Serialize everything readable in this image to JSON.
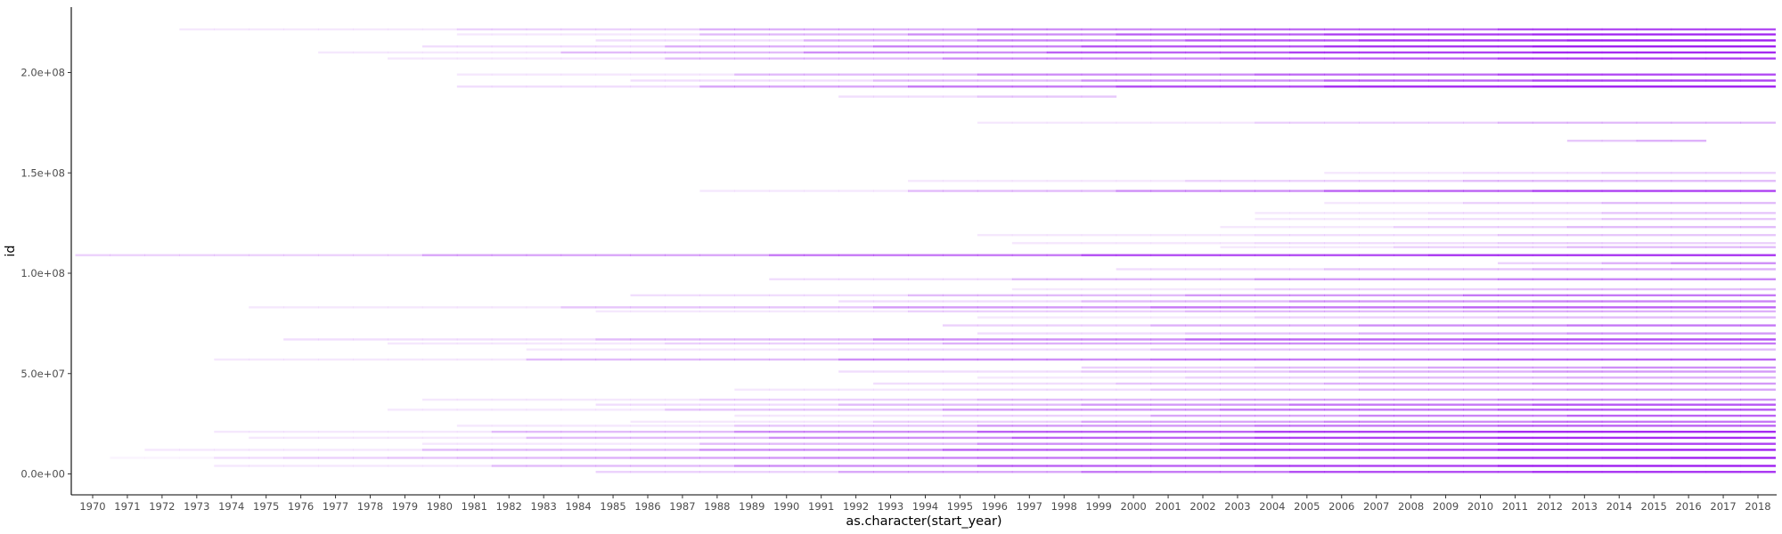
{
  "chart_data": {
    "type": "heatmap",
    "xlabel": "as.character(start_year)",
    "ylabel": "id",
    "categories": [
      "1970",
      "1971",
      "1972",
      "1973",
      "1974",
      "1975",
      "1976",
      "1977",
      "1978",
      "1979",
      "1980",
      "1981",
      "1982",
      "1983",
      "1984",
      "1985",
      "1986",
      "1987",
      "1988",
      "1989",
      "1990",
      "1991",
      "1992",
      "1993",
      "1994",
      "1995",
      "1996",
      "1997",
      "1998",
      "1999",
      "2000",
      "2001",
      "2002",
      "2003",
      "2004",
      "2005",
      "2006",
      "2007",
      "2008",
      "2009",
      "2010",
      "2011",
      "2012",
      "2013",
      "2014",
      "2015",
      "2016",
      "2017",
      "2018"
    ],
    "y_ticks": [
      {
        "value": 0,
        "label": "0.0e+00"
      },
      {
        "value": 50000000,
        "label": "5.0e+07"
      },
      {
        "value": 100000000,
        "label": "1.0e+08"
      },
      {
        "value": 150000000,
        "label": "1.5e+08"
      },
      {
        "value": 200000000,
        "label": "2.0e+08"
      }
    ],
    "ylim": [
      -11000000,
      228000000
    ],
    "fill_color": "#a020f0",
    "grid": false,
    "legend": "none",
    "bands": [
      {
        "id": 8000000,
        "start": "1971",
        "end": "2018",
        "dens": [
          0.05,
          0.15,
          0.2,
          0.25,
          0.3,
          0.35,
          0.4,
          0.45,
          0.5,
          0.55,
          0.6,
          0.65,
          0.7,
          0.75,
          0.8,
          0.85,
          0.9,
          0.95,
          1.0
        ]
      },
      {
        "id": 4000000,
        "start": "1974",
        "end": "2018",
        "dens": [
          0.1,
          0.3,
          0.5,
          0.7,
          0.85,
          1.0
        ]
      },
      {
        "id": 12000000,
        "start": "1972",
        "end": "2018",
        "dens": [
          0.1,
          0.3,
          0.5,
          0.7,
          0.85,
          1.0
        ]
      },
      {
        "id": 1000000,
        "start": "1985",
        "end": "2018",
        "dens": [
          0.2,
          0.4,
          0.6,
          0.8,
          0.9
        ]
      },
      {
        "id": 15000000,
        "start": "1980",
        "end": "2018",
        "dens": [
          0.1,
          0.3,
          0.5,
          0.7,
          0.85
        ]
      },
      {
        "id": 18000000,
        "start": "1975",
        "end": "2018",
        "dens": [
          0.1,
          0.3,
          0.5,
          0.7,
          0.85,
          0.95
        ]
      },
      {
        "id": 21000000,
        "start": "1974",
        "end": "2018",
        "dens": [
          0.1,
          0.3,
          0.5,
          0.7,
          0.85,
          0.95
        ]
      },
      {
        "id": 24000000,
        "start": "1981",
        "end": "2018",
        "dens": [
          0.1,
          0.25,
          0.45,
          0.6,
          0.7
        ]
      },
      {
        "id": 26000000,
        "start": "1986",
        "end": "2018",
        "dens": [
          0.1,
          0.2,
          0.4,
          0.5,
          0.6
        ]
      },
      {
        "id": 29000000,
        "start": "1989",
        "end": "2018",
        "dens": [
          0.1,
          0.2,
          0.4,
          0.55,
          0.7
        ]
      },
      {
        "id": 32000000,
        "start": "1979",
        "end": "2018",
        "dens": [
          0.1,
          0.25,
          0.45,
          0.6,
          0.75
        ]
      },
      {
        "id": 34500000,
        "start": "1985",
        "end": "2018",
        "dens": [
          0.15,
          0.3,
          0.45,
          0.6,
          0.75
        ]
      },
      {
        "id": 37000000,
        "start": "1980",
        "end": "2018",
        "dens": [
          0.1,
          0.2,
          0.3,
          0.4,
          0.5
        ]
      },
      {
        "id": 42000000,
        "start": "1989",
        "end": "2018",
        "dens": [
          0.1,
          0.15,
          0.25,
          0.35,
          0.4
        ]
      },
      {
        "id": 45000000,
        "start": "1993",
        "end": "2018",
        "dens": [
          0.15,
          0.25,
          0.35,
          0.45
        ]
      },
      {
        "id": 48000000,
        "start": "1996",
        "end": "2018",
        "dens": [
          0.1,
          0.2,
          0.3,
          0.35
        ]
      },
      {
        "id": 51000000,
        "start": "1992",
        "end": "2018",
        "dens": [
          0.15,
          0.25,
          0.35,
          0.45
        ]
      },
      {
        "id": 53000000,
        "start": "1999",
        "end": "2018",
        "dens": [
          0.2,
          0.3,
          0.4,
          0.5
        ]
      },
      {
        "id": 57000000,
        "start": "1974",
        "end": "2018",
        "dens": [
          0.1,
          0.3,
          0.5,
          0.6,
          0.7
        ]
      },
      {
        "id": 62000000,
        "start": "1983",
        "end": "2018",
        "dens": [
          0.1,
          0.15,
          0.25,
          0.3
        ]
      },
      {
        "id": 65000000,
        "start": "1979",
        "end": "2018",
        "dens": [
          0.1,
          0.2,
          0.35,
          0.5,
          0.6
        ]
      },
      {
        "id": 67000000,
        "start": "1976",
        "end": "2018",
        "dens": [
          0.15,
          0.3,
          0.5,
          0.7,
          0.8
        ]
      },
      {
        "id": 70000000,
        "start": "1996",
        "end": "2018",
        "dens": [
          0.15,
          0.25,
          0.35,
          0.45
        ]
      },
      {
        "id": 74000000,
        "start": "1995",
        "end": "2018",
        "dens": [
          0.2,
          0.35,
          0.5,
          0.6
        ]
      },
      {
        "id": 78000000,
        "start": "1996",
        "end": "2018",
        "dens": [
          0.1,
          0.2,
          0.3
        ]
      },
      {
        "id": 81000000,
        "start": "1985",
        "end": "2018",
        "dens": [
          0.1,
          0.2,
          0.3,
          0.35
        ]
      },
      {
        "id": 83000000,
        "start": "1975",
        "end": "2018",
        "dens": [
          0.1,
          0.25,
          0.45,
          0.6,
          0.7
        ]
      },
      {
        "id": 86000000,
        "start": "1992",
        "end": "2018",
        "dens": [
          0.15,
          0.3,
          0.45,
          0.55
        ]
      },
      {
        "id": 89000000,
        "start": "1986",
        "end": "2018",
        "dens": [
          0.15,
          0.3,
          0.45,
          0.6
        ]
      },
      {
        "id": 92000000,
        "start": "1997",
        "end": "2018",
        "dens": [
          0.1,
          0.2,
          0.3
        ]
      },
      {
        "id": 97000000,
        "start": "1990",
        "end": "2018",
        "dens": [
          0.15,
          0.3,
          0.45,
          0.55
        ]
      },
      {
        "id": 102000000,
        "start": "2000",
        "end": "2018",
        "dens": [
          0.15,
          0.25,
          0.35
        ]
      },
      {
        "id": 105000000,
        "start": "2011",
        "end": "2018",
        "dens": [
          0.2,
          0.35,
          0.5
        ]
      },
      {
        "id": 109000000,
        "start": "1970",
        "end": "2018",
        "dens": [
          0.2,
          0.4,
          0.6,
          0.8,
          0.9
        ]
      },
      {
        "id": 113000000,
        "start": "2003",
        "end": "2018",
        "dens": [
          0.1,
          0.2,
          0.3
        ]
      },
      {
        "id": 115000000,
        "start": "1997",
        "end": "2018",
        "dens": [
          0.1,
          0.15,
          0.2
        ]
      },
      {
        "id": 119000000,
        "start": "1996",
        "end": "2018",
        "dens": [
          0.1,
          0.15,
          0.25
        ]
      },
      {
        "id": 123000000,
        "start": "2003",
        "end": "2018",
        "dens": [
          0.1,
          0.2,
          0.3
        ]
      },
      {
        "id": 127000000,
        "start": "2004",
        "end": "2018",
        "dens": [
          0.1,
          0.15,
          0.25
        ]
      },
      {
        "id": 130000000,
        "start": "2004",
        "end": "2018",
        "dens": [
          0.1,
          0.15,
          0.25
        ]
      },
      {
        "id": 135000000,
        "start": "2006",
        "end": "2018",
        "dens": [
          0.1,
          0.2,
          0.3
        ]
      },
      {
        "id": 141000000,
        "start": "1988",
        "end": "2018",
        "dens": [
          0.1,
          0.3,
          0.5,
          0.7,
          0.85
        ]
      },
      {
        "id": 146000000,
        "start": "1994",
        "end": "2018",
        "dens": [
          0.1,
          0.2,
          0.3
        ]
      },
      {
        "id": 150000000,
        "start": "2006",
        "end": "2018",
        "dens": [
          0.1,
          0.15,
          0.2
        ]
      },
      {
        "id": 166000000,
        "start": "2013",
        "end": "2016",
        "dens": [
          0.25,
          0.35
        ]
      },
      {
        "id": 175000000,
        "start": "1996",
        "end": "2018",
        "dens": [
          0.1,
          0.2,
          0.3
        ]
      },
      {
        "id": 188000000,
        "start": "1992",
        "end": "1999",
        "dens": [
          0.15,
          0.25
        ]
      },
      {
        "id": 193000000,
        "start": "1981",
        "end": "2018",
        "dens": [
          0.15,
          0.4,
          0.6,
          0.8,
          0.95,
          1.0
        ]
      },
      {
        "id": 196000000,
        "start": "1986",
        "end": "2018",
        "dens": [
          0.15,
          0.3,
          0.5,
          0.7,
          0.85
        ]
      },
      {
        "id": 199000000,
        "start": "1981",
        "end": "2018",
        "dens": [
          0.1,
          0.3,
          0.5,
          0.65,
          0.8
        ]
      },
      {
        "id": 207000000,
        "start": "1979",
        "end": "2018",
        "dens": [
          0.1,
          0.3,
          0.5,
          0.7,
          0.85
        ]
      },
      {
        "id": 210000000,
        "start": "1977",
        "end": "2018",
        "dens": [
          0.1,
          0.3,
          0.5,
          0.7,
          0.85,
          0.95
        ]
      },
      {
        "id": 213000000,
        "start": "1980",
        "end": "2018",
        "dens": [
          0.15,
          0.35,
          0.55,
          0.75,
          0.9,
          1.0
        ]
      },
      {
        "id": 216000000,
        "start": "1985",
        "end": "2018",
        "dens": [
          0.15,
          0.35,
          0.55,
          0.75,
          0.9,
          1.0
        ]
      },
      {
        "id": 219000000,
        "start": "1981",
        "end": "2018",
        "dens": [
          0.1,
          0.3,
          0.5,
          0.7,
          0.85,
          0.95
        ]
      },
      {
        "id": 221500000,
        "start": "1973",
        "end": "2018",
        "dens": [
          0.1,
          0.2,
          0.35,
          0.5,
          0.65,
          0.8
        ]
      }
    ]
  }
}
